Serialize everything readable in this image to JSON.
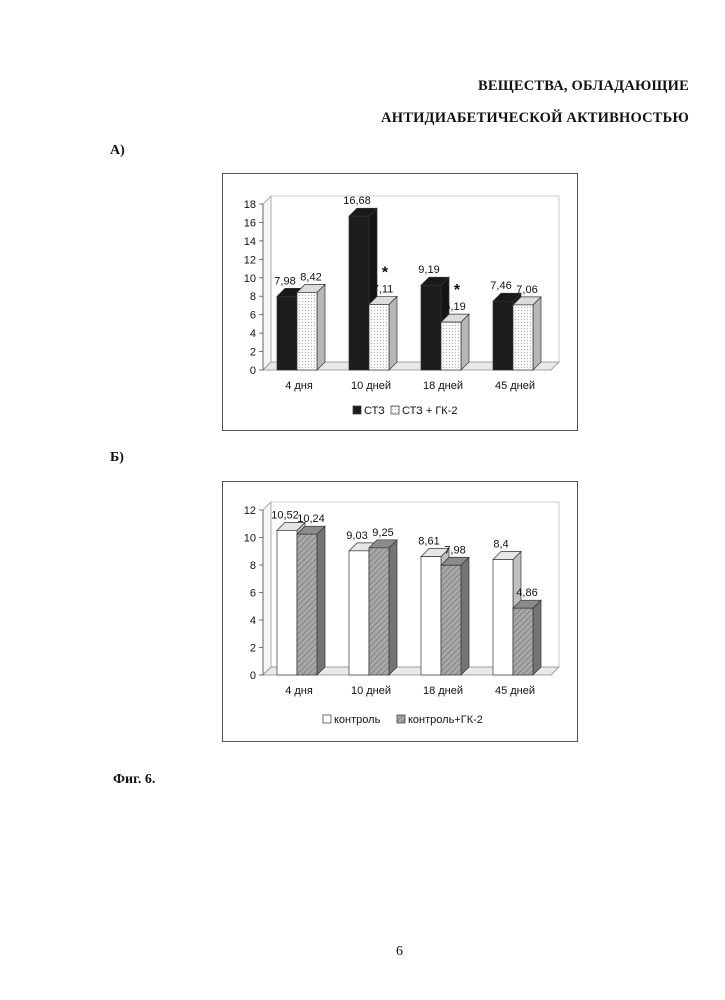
{
  "header": {
    "title_line1": "ВЕЩЕСТВА, ОБЛАДАЮЩИЕ",
    "title_line2": "АНТИДИАБЕТИЧЕСКОЙ АКТИВНОСТЬЮ"
  },
  "panels": {
    "a_label": "А)",
    "b_label": "Б)"
  },
  "caption": "Фиг. 6.",
  "page_number": "6",
  "chart_data": [
    {
      "type": "bar",
      "categories": [
        "4 дня",
        "10 дней",
        "18 дней",
        "45 дней"
      ],
      "series": [
        {
          "name": "СТЗ",
          "values": [
            7.98,
            16.68,
            9.19,
            7.46
          ],
          "labels": [
            "7,98",
            "16,68",
            "9,19",
            "7,46"
          ],
          "color": "#1c1c1c"
        },
        {
          "name": "СТЗ + ГК-2",
          "values": [
            8.42,
            7.11,
            5.19,
            7.06
          ],
          "labels": [
            "8,42",
            "7,11",
            "5,19",
            "7,06"
          ],
          "color": "#f4f4f4"
        }
      ],
      "ylim": [
        0,
        18
      ],
      "yticks": [
        "0",
        "2",
        "4",
        "6",
        "8",
        "10",
        "12",
        "14",
        "16",
        "18"
      ],
      "annotations": [
        "*",
        "*"
      ],
      "legend_position": "bottom",
      "grid": false
    },
    {
      "type": "bar",
      "categories": [
        "4 дня",
        "10 дней",
        "18 дней",
        "45 дней"
      ],
      "series": [
        {
          "name": "контроль",
          "values": [
            10.52,
            9.03,
            8.61,
            8.4
          ],
          "labels": [
            "10,52",
            "9,03",
            "8,61",
            "8,4"
          ],
          "color": "#ffffff"
        },
        {
          "name": "контроль+ГК-2",
          "values": [
            10.24,
            9.25,
            7.98,
            4.86
          ],
          "labels": [
            "10,24",
            "9,25",
            "7,98",
            "4,86"
          ],
          "color": "#9a9a9a"
        }
      ],
      "ylim": [
        0,
        12
      ],
      "yticks": [
        "0",
        "2",
        "4",
        "6",
        "8",
        "10",
        "12"
      ],
      "legend_position": "bottom",
      "grid": false
    }
  ]
}
